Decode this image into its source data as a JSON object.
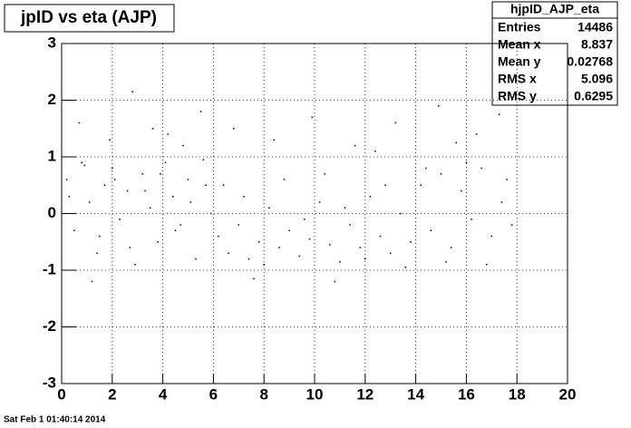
{
  "chart_data": {
    "type": "scatter",
    "title": "jpID vs eta (AJP)",
    "stats_title": "hjpID_AJP_eta",
    "stats": [
      {
        "label": "Entries",
        "value": 14486
      },
      {
        "label": "Mean x",
        "value": 8.837
      },
      {
        "label": "Mean y",
        "value": 0.02768
      },
      {
        "label": "RMS x",
        "value": 5.096
      },
      {
        "label": "RMS y",
        "value": 0.6295
      }
    ],
    "footer": "Sat Feb  1 01:40:14 2014",
    "color": "#000000",
    "grid": true,
    "xlim": [
      0,
      20
    ],
    "ylim": [
      -3,
      3
    ],
    "xticks": [
      0,
      2,
      4,
      6,
      8,
      10,
      12,
      14,
      16,
      18,
      20
    ],
    "yticks": [
      -3,
      -2,
      -1,
      0,
      1,
      2,
      3
    ],
    "x": [
      0.2,
      0.5,
      0.8,
      1.1,
      1.4,
      1.7,
      2.0,
      2.3,
      2.6,
      2.9,
      3.2,
      3.5,
      3.8,
      4.1,
      4.4,
      4.7,
      5.0,
      5.3,
      5.6,
      5.9,
      0.3,
      0.9,
      1.5,
      2.1,
      2.7,
      3.3,
      3.9,
      4.5,
      5.1,
      5.7,
      0.7,
      1.9,
      2.8,
      3.6,
      4.8,
      5.5,
      1.2,
      4.2,
      6.2,
      6.6,
      7.0,
      7.4,
      7.8,
      8.2,
      8.6,
      9.0,
      9.4,
      9.8,
      10.2,
      10.6,
      11.0,
      11.4,
      11.8,
      12.2,
      12.6,
      13.0,
      13.4,
      13.8,
      14.2,
      14.6,
      15.0,
      15.4,
      15.8,
      16.2,
      16.6,
      17.0,
      17.4,
      17.8,
      6.4,
      7.2,
      8.0,
      8.8,
      9.6,
      10.4,
      11.2,
      12.0,
      12.8,
      13.6,
      14.4,
      15.2,
      16.0,
      16.8,
      17.6,
      6.8,
      8.4,
      9.9,
      11.6,
      13.2,
      14.9,
      16.4,
      17.3,
      7.6,
      10.8,
      12.4,
      15.6
    ],
    "y": [
      0.6,
      -0.3,
      0.9,
      0.2,
      -0.7,
      0.5,
      0.8,
      -0.1,
      0.4,
      -0.9,
      0.7,
      0.1,
      -0.5,
      0.9,
      0.3,
      -0.2,
      0.6,
      -0.8,
      0.95,
      0.0,
      0.3,
      0.85,
      -0.4,
      0.6,
      -0.6,
      0.4,
      0.7,
      -0.3,
      0.2,
      0.5,
      1.6,
      1.3,
      2.15,
      1.5,
      1.2,
      1.8,
      -1.2,
      1.4,
      -0.4,
      -0.7,
      -0.2,
      -0.8,
      -0.5,
      0.1,
      -0.6,
      -0.3,
      -0.75,
      -0.45,
      0.2,
      -0.55,
      -0.85,
      -0.2,
      -0.6,
      0.3,
      -0.4,
      -0.7,
      0.0,
      -0.5,
      0.5,
      -0.3,
      0.7,
      -0.6,
      0.4,
      -0.1,
      0.8,
      -0.4,
      0.2,
      -0.2,
      0.5,
      0.3,
      -0.9,
      0.6,
      -0.1,
      0.7,
      0.1,
      -0.8,
      0.5,
      -0.95,
      0.8,
      -0.85,
      0.9,
      -0.9,
      0.6,
      1.5,
      1.3,
      1.7,
      1.2,
      1.6,
      1.9,
      1.4,
      1.75,
      -1.15,
      -1.2,
      1.1,
      1.25
    ]
  }
}
